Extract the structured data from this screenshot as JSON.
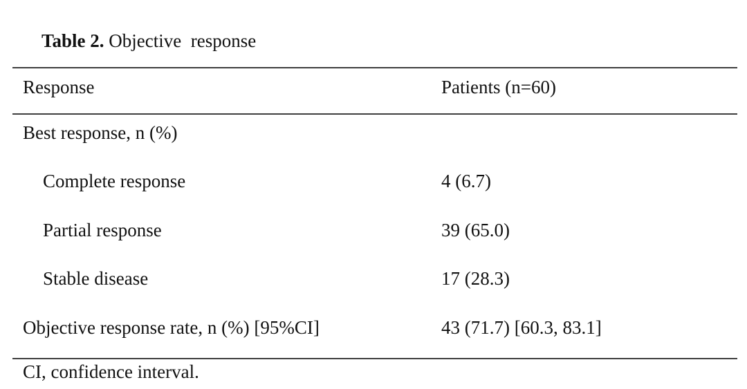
{
  "page": {
    "background": "#ffffff",
    "text_color": "#111111",
    "rule_color": "#3d3d3d"
  },
  "caption": {
    "label_bold": "Table 2.",
    "label_rest": " Objective  response"
  },
  "table": {
    "header": {
      "left": "Response",
      "right": "Patients (n=60)"
    },
    "rows": [
      {
        "label": "Best response, n (%)",
        "value": "",
        "indent": false
      },
      {
        "label": "Complete response",
        "value": "4 (6.7)",
        "indent": true
      },
      {
        "label": "Partial response",
        "value": "39 (65.0)",
        "indent": true
      },
      {
        "label": "Stable disease",
        "value": "17 (28.3)",
        "indent": true
      },
      {
        "label": "Objective response rate, n (%) [95%CI]",
        "value": "43 (71.7) [60.3, 83.1]",
        "indent": false
      }
    ]
  },
  "footnote": "CI, confidence interval."
}
